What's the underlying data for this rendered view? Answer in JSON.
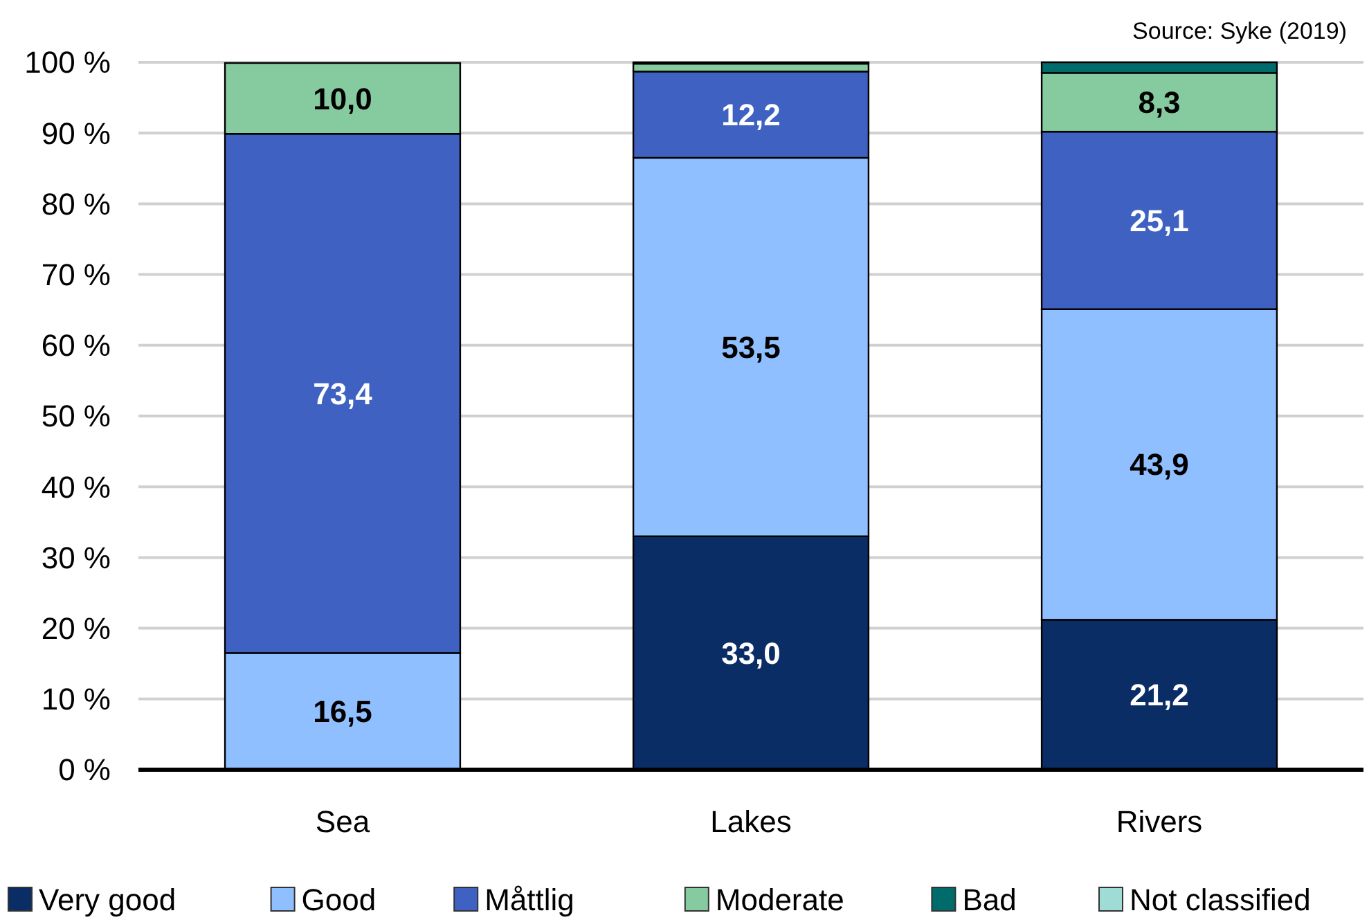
{
  "chart_data": {
    "type": "bar",
    "stacked": true,
    "categories": [
      "Sea",
      "Lakes",
      "Rivers"
    ],
    "series": [
      {
        "name": "Very good",
        "color": "#0b2d66",
        "values": [
          0,
          33.0,
          21.2
        ],
        "value_labels": [
          null,
          "33,0",
          "21,2"
        ]
      },
      {
        "name": "Good",
        "color": "#8fbfff",
        "values": [
          16.5,
          53.5,
          43.9
        ],
        "value_labels": [
          "16,5",
          "53,5",
          "43,9"
        ]
      },
      {
        "name": "Måttlig",
        "color": "#3f62c2",
        "values": [
          73.4,
          12.2,
          25.1
        ],
        "value_labels": [
          "73,4",
          "12,2",
          "25,1"
        ]
      },
      {
        "name": "Moderate",
        "color": "#86cba0",
        "values": [
          10.0,
          1.1,
          8.3
        ],
        "value_labels": [
          "10,0",
          null,
          "8,3"
        ]
      },
      {
        "name": "Bad",
        "color": "#006b6b",
        "values": [
          0,
          0.2,
          1.5
        ],
        "value_labels": [
          null,
          null,
          null
        ]
      },
      {
        "name": "Not classified",
        "color": "#9fdcd6",
        "values": [
          0,
          0,
          0
        ],
        "value_labels": [
          null,
          null,
          null
        ]
      }
    ],
    "ylim": [
      0,
      100
    ],
    "yticks": [
      {
        "value": 0,
        "label": "0 %"
      },
      {
        "value": 10,
        "label": "10 %"
      },
      {
        "value": 20,
        "label": "20 %"
      },
      {
        "value": 30,
        "label": "30 %"
      },
      {
        "value": 40,
        "label": "40 %"
      },
      {
        "value": 50,
        "label": "50 %"
      },
      {
        "value": 60,
        "label": "60 %"
      },
      {
        "value": 70,
        "label": "70 %"
      },
      {
        "value": 80,
        "label": "80 %"
      },
      {
        "value": 90,
        "label": "90 %"
      },
      {
        "value": 100,
        "label": "100 %"
      }
    ],
    "grid": "y",
    "legend": "bottom",
    "annotations": [
      "Source: Syke (2019)"
    ]
  }
}
